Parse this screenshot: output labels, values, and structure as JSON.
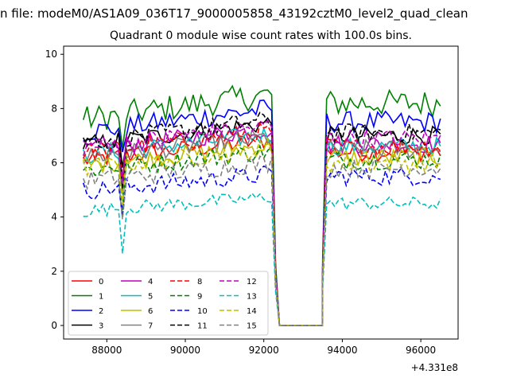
{
  "chart_data": {
    "type": "line",
    "suptitle": "n file: modeM0/AS1A09_036T17_9000005858_43192cztM0_level2_quad_clean",
    "title": "Quadrant 0 module wise count rates with 100.0s bins.",
    "xlabel": "",
    "ylabel": "",
    "x_offset_label": "+4.331e8",
    "xlim": [
      86900,
      96950
    ],
    "ylim": [
      -0.5,
      10.3
    ],
    "xticks": [
      88000,
      90000,
      92000,
      94000,
      96000
    ],
    "xtick_labels": [
      "88000",
      "90000",
      "92000",
      "94000",
      "96000"
    ],
    "yticks": [
      0,
      2,
      4,
      6,
      8,
      10
    ],
    "ytick_labels": [
      "0",
      "2",
      "4",
      "6",
      "8",
      "10"
    ],
    "grid": false,
    "legend_position": "lower-left",
    "legend_columns": 4,
    "segments": [
      {
        "x_start": 87400,
        "x_end": 92200,
        "gap_after_x": 92400
      },
      {
        "x_start": 93600,
        "x_end": 96550
      }
    ],
    "drop_x": [
      92300,
      92400
    ],
    "gap_x": [
      92400,
      93500
    ],
    "rise_x": [
      93500,
      93600
    ],
    "series": [
      {
        "name": "0",
        "color": "#ff0000",
        "dash": "solid",
        "level1": 6.5,
        "level2": 6.4,
        "amp": 0.35
      },
      {
        "name": "1",
        "color": "#008000",
        "dash": "solid",
        "level1": 8.1,
        "level2": 8.2,
        "amp": 0.5
      },
      {
        "name": "2",
        "color": "#0000ff",
        "dash": "solid",
        "level1": 7.6,
        "level2": 7.5,
        "amp": 0.4
      },
      {
        "name": "3",
        "color": "#000000",
        "dash": "solid",
        "level1": 7.1,
        "level2": 7.0,
        "amp": 0.35
      },
      {
        "name": "4",
        "color": "#bf00bf",
        "dash": "solid",
        "level1": 6.9,
        "level2": 6.7,
        "amp": 0.35
      },
      {
        "name": "5",
        "color": "#00bfbf",
        "dash": "solid",
        "level1": 6.7,
        "level2": 6.6,
        "amp": 0.35
      },
      {
        "name": "6",
        "color": "#bfbf00",
        "dash": "solid",
        "level1": 6.3,
        "level2": 6.2,
        "amp": 0.35
      },
      {
        "name": "7",
        "color": "#808080",
        "dash": "solid",
        "level1": 6.6,
        "level2": 6.5,
        "amp": 0.35
      },
      {
        "name": "8",
        "color": "#ff0000",
        "dash": "dashed",
        "level1": 6.8,
        "level2": 6.6,
        "amp": 0.35
      },
      {
        "name": "9",
        "color": "#008000",
        "dash": "dashed",
        "level1": 6.1,
        "level2": 6.1,
        "amp": 0.35
      },
      {
        "name": "10",
        "color": "#0000ff",
        "dash": "dashed",
        "level1": 5.3,
        "level2": 5.5,
        "amp": 0.35
      },
      {
        "name": "11",
        "color": "#000000",
        "dash": "dashed",
        "level1": 7.2,
        "level2": 7.1,
        "amp": 0.35
      },
      {
        "name": "12",
        "color": "#bf00bf",
        "dash": "dashed",
        "level1": 7.0,
        "level2": 6.9,
        "amp": 0.35
      },
      {
        "name": "13",
        "color": "#00bfbf",
        "dash": "dashed",
        "level1": 4.5,
        "level2": 4.5,
        "amp": 0.25
      },
      {
        "name": "14",
        "color": "#bfbf00",
        "dash": "dashed",
        "level1": 6.2,
        "level2": 6.0,
        "amp": 0.35
      },
      {
        "name": "15",
        "color": "#808080",
        "dash": "dashed",
        "level1": 5.7,
        "level2": 5.8,
        "amp": 0.35
      }
    ]
  }
}
